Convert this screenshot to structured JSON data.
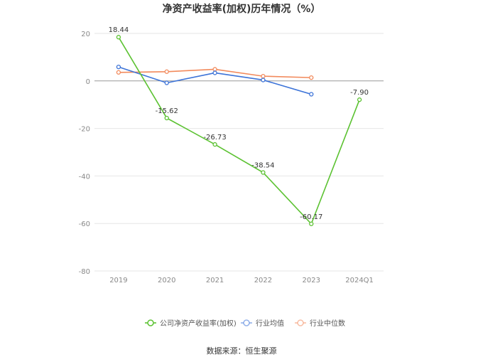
{
  "chart_data": {
    "type": "line",
    "title": "净资产收益率(加权)历年情况（%）",
    "xlabel": "",
    "ylabel": "",
    "categories": [
      "2019",
      "2020",
      "2021",
      "2022",
      "2023",
      "2024Q1"
    ],
    "ylim": [
      -80,
      20
    ],
    "yticks": [
      20,
      0,
      -20,
      -40,
      -60,
      -80
    ],
    "grid": true,
    "legend_position": "bottom",
    "series": [
      {
        "name": "公司净资产收益率(加权)",
        "color": "#5cc232",
        "values": [
          18.44,
          -15.62,
          -26.73,
          -38.54,
          -60.17,
          -7.9
        ],
        "labels": [
          "18.44",
          "-15.62",
          "-26.73",
          "-38.54",
          "-60.17",
          "-7.90"
        ]
      },
      {
        "name": "行业均值",
        "color": "#3c73d8",
        "values": [
          5.9,
          -0.8,
          3.4,
          0.4,
          -5.6,
          null
        ]
      },
      {
        "name": "行业中位数",
        "color": "#f28a5c",
        "values": [
          3.6,
          3.9,
          4.9,
          2.0,
          1.4,
          null
        ]
      }
    ]
  },
  "source_text": "数据来源：恒生聚源"
}
